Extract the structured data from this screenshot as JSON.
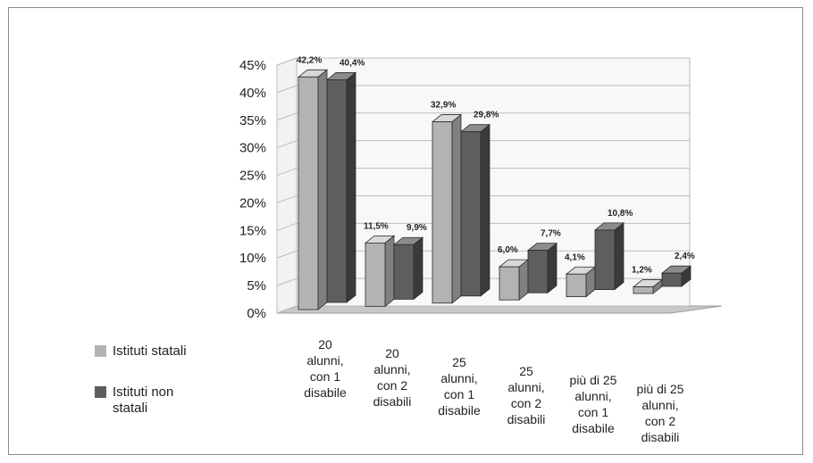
{
  "chart_data": {
    "type": "bar",
    "categories": [
      [
        "20",
        "alunni,",
        "con 1",
        "disabile"
      ],
      [
        "20",
        "alunni,",
        "con 2",
        "disabili"
      ],
      [
        "25",
        "alunni,",
        "con 1",
        "disabile"
      ],
      [
        "25",
        "alunni,",
        "con 2",
        "disabili"
      ],
      [
        "più di 25",
        "alunni,",
        "con 1",
        "disabile"
      ],
      [
        "più di 25",
        "alunni,",
        "con 2",
        "disabili"
      ]
    ],
    "series": [
      {
        "name": "Istituti statali",
        "values": [
          42.2,
          11.5,
          32.9,
          6.0,
          4.1,
          1.2
        ],
        "labels": [
          "42,2%",
          "11,5%",
          "32,9%",
          "6,0%",
          "4,1%",
          "1,2%"
        ]
      },
      {
        "name": "Istituti non statali",
        "values": [
          40.4,
          9.9,
          29.8,
          7.7,
          10.8,
          2.4
        ],
        "labels": [
          "40,4%",
          "9,9%",
          "29,8%",
          "7,7%",
          "10,8%",
          "2,4%"
        ]
      }
    ],
    "ylim": [
      0,
      45
    ],
    "yticks": [
      "0%",
      "5%",
      "10%",
      "15%",
      "20%",
      "25%",
      "30%",
      "35%",
      "40%",
      "45%"
    ],
    "xlabel": "",
    "ylabel": "",
    "legend_position": "left",
    "grid": true,
    "style": "3d-bar",
    "colors": {
      "statali_front": "#b3b3b3",
      "statali_top": "#d9d9d9",
      "statali_side": "#808080",
      "nonstatali_front": "#5e5e5e",
      "nonstatali_top": "#8c8c8c",
      "nonstatali_side": "#3a3a3a",
      "floor": "#c8c8c8",
      "grid": "#bdbdbd",
      "text": "#222222"
    }
  }
}
